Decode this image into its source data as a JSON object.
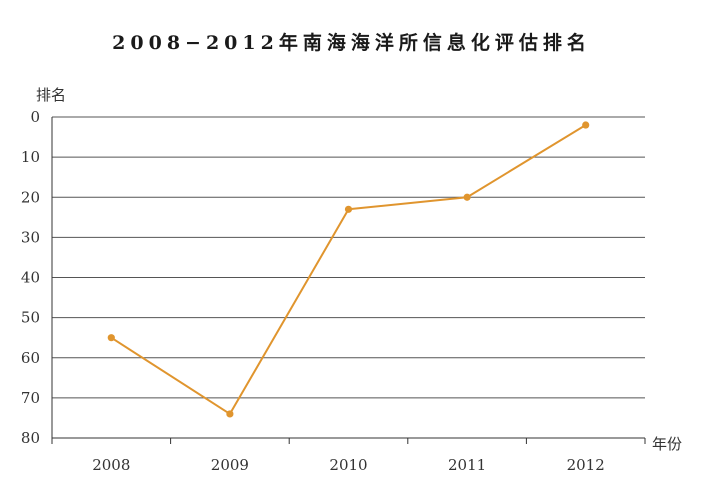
{
  "chart_data": {
    "type": "line",
    "title": "2008−2012年南海海洋所信息化评估排名",
    "ylabel": "排名",
    "xlabel": "年份",
    "categories": [
      "2008",
      "2009",
      "2010",
      "2011",
      "2012"
    ],
    "series": [
      {
        "values": [
          55,
          74,
          23,
          20,
          2
        ]
      }
    ],
    "ylim": [
      0,
      80
    ],
    "yaxis_inverted": true,
    "yticks": [
      0,
      10,
      20,
      30,
      40,
      50,
      60,
      70,
      80
    ],
    "grid": true,
    "colors": {
      "line": "#E0952E",
      "grid": "#555555",
      "axis": "#333333"
    }
  }
}
